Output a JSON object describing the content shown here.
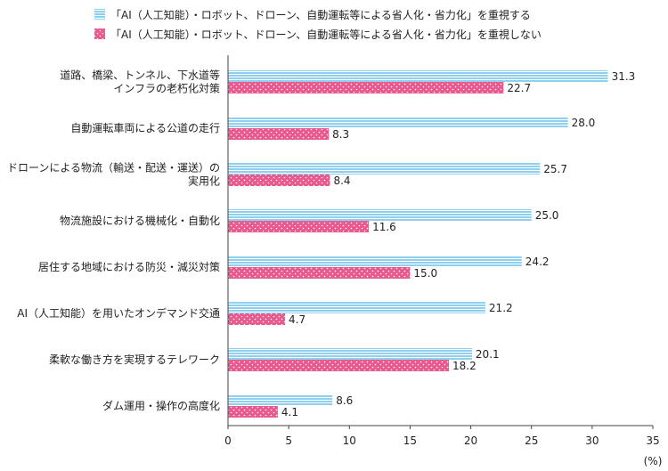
{
  "chart_data": {
    "type": "bar",
    "orientation": "horizontal",
    "categories": [
      [
        "道路、橋梁、トンネル、下水道等",
        "インフラの老朽化対策"
      ],
      [
        "自動運転車両による公道の走行"
      ],
      [
        "ドローンによる物流（輸送・配送・運送）の",
        "実用化"
      ],
      [
        "物流施設における機械化・自動化"
      ],
      [
        "居住する地域における防災・減災対策"
      ],
      [
        "AI（人工知能）を用いたオンデマンド交通"
      ],
      [
        "柔軟な働き方を実現するテレワーク"
      ],
      [
        "ダム運用・操作の高度化"
      ]
    ],
    "series": [
      {
        "name": "「AI（人工知能）・ロボット、ドローン、自動運転等による省人化・省力化」を重視する",
        "values": [
          31.3,
          28.0,
          25.7,
          25.0,
          24.2,
          21.2,
          20.1,
          8.6
        ],
        "labels": [
          "31.3",
          "28.0",
          "25.7",
          "25.0",
          "24.2",
          "21.2",
          "20.1",
          "8.6"
        ],
        "color": "#8fd0ee",
        "stripe_color": "#ffffff",
        "pattern": "horizontal-stripes"
      },
      {
        "name": "「AI（人工知能）・ロボット、ドローン、自動運転等による省人化・省力化」を重視しない",
        "values": [
          22.7,
          8.3,
          8.4,
          11.6,
          15.0,
          4.7,
          18.2,
          4.1
        ],
        "labels": [
          "22.7",
          "8.3",
          "8.4",
          "11.6",
          "15.0",
          "4.7",
          "18.2",
          "4.1"
        ],
        "color": "#e85a8e",
        "stripe_color": "#ffffff",
        "pattern": "dots"
      }
    ],
    "xlim": [
      0,
      35
    ],
    "xticks": [
      "0",
      "5",
      "10",
      "15",
      "20",
      "25",
      "30",
      "35"
    ],
    "xunit": "(%)",
    "legend_position": "top"
  }
}
